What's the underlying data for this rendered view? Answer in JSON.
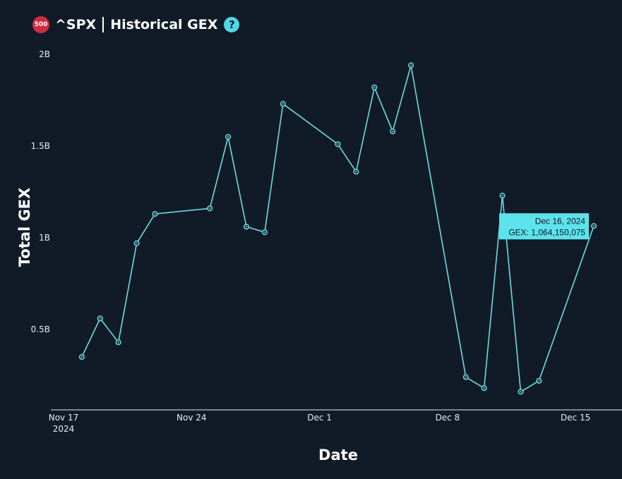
{
  "header": {
    "badge": "500",
    "ticker": "^SPX",
    "title": "Historical GEX",
    "help_glyph": "?"
  },
  "colors": {
    "background": "#111b27",
    "line": "#6fd8e0",
    "accent": "#4fd8e4",
    "badge": "#cf2d3f",
    "tooltip_bg": "#5de3ec"
  },
  "icons": {
    "badge": "spx-500-badge-icon",
    "help": "question-circle-icon"
  },
  "chart_data": {
    "type": "line",
    "title": "",
    "xlabel": "Date",
    "ylabel": "Total GEX",
    "x_range": [
      "2024-11-17",
      "2024-12-17"
    ],
    "ylim": [
      0,
      2000000000
    ],
    "y_ticks": [
      {
        "value": 500000000,
        "label": "0.5B"
      },
      {
        "value": 1000000000,
        "label": "1B"
      },
      {
        "value": 1500000000,
        "label": "1.5B"
      },
      {
        "value": 2000000000,
        "label": "2B"
      }
    ],
    "x_ticks": [
      {
        "date": "2024-11-17",
        "label": "Nov 17",
        "sublabel": "2024"
      },
      {
        "date": "2024-11-24",
        "label": "Nov 24",
        "sublabel": ""
      },
      {
        "date": "2024-12-01",
        "label": "Dec 1",
        "sublabel": ""
      },
      {
        "date": "2024-12-08",
        "label": "Dec 8",
        "sublabel": ""
      },
      {
        "date": "2024-12-15",
        "label": "Dec 15",
        "sublabel": ""
      }
    ],
    "grid": false,
    "series": [
      {
        "points": [
          {
            "x": "2024-11-18",
            "y": 350000000
          },
          {
            "x": "2024-11-19",
            "y": 560000000
          },
          {
            "x": "2024-11-20",
            "y": 430000000
          },
          {
            "x": "2024-11-21",
            "y": 970000000
          },
          {
            "x": "2024-11-22",
            "y": 1130000000
          },
          {
            "x": "2024-11-25",
            "y": 1160000000
          },
          {
            "x": "2024-11-26",
            "y": 1550000000
          },
          {
            "x": "2024-11-27",
            "y": 1060000000
          },
          {
            "x": "2024-11-28",
            "y": 1030000000
          },
          {
            "x": "2024-11-29",
            "y": 1730000000
          },
          {
            "x": "2024-12-02",
            "y": 1510000000
          },
          {
            "x": "2024-12-03",
            "y": 1360000000
          },
          {
            "x": "2024-12-04",
            "y": 1820000000
          },
          {
            "x": "2024-12-05",
            "y": 1580000000
          },
          {
            "x": "2024-12-06",
            "y": 1940000000
          },
          {
            "x": "2024-12-09",
            "y": 240000000
          },
          {
            "x": "2024-12-10",
            "y": 180000000
          },
          {
            "x": "2024-12-11",
            "y": 1230000000
          },
          {
            "x": "2024-12-12",
            "y": 160000000
          },
          {
            "x": "2024-12-13",
            "y": 220000000
          },
          {
            "x": "2024-12-16",
            "y": 1064150075
          }
        ]
      }
    ],
    "tooltip": {
      "date_label": "Dec 16, 2024",
      "value_label": "GEX: 1,064,150,075",
      "x": "2024-12-16",
      "y": 1064150075
    }
  }
}
